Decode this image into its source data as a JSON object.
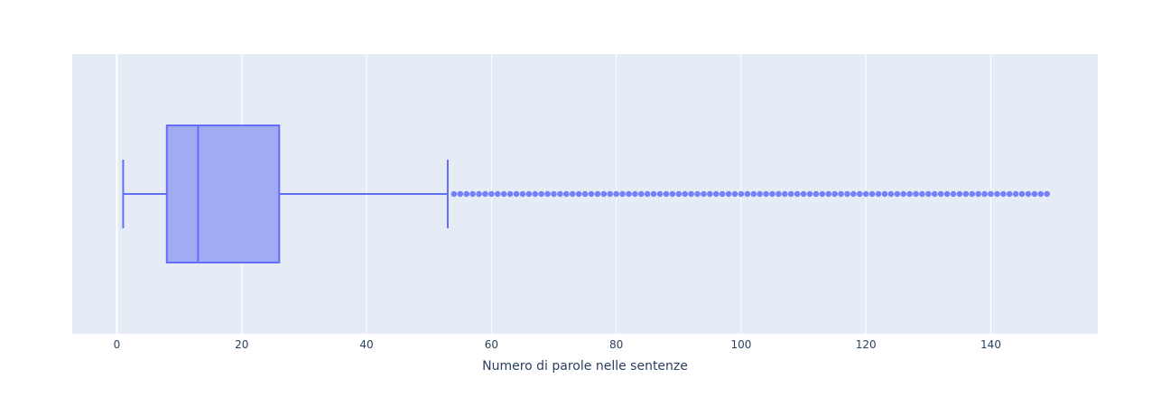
{
  "chart_data": {
    "type": "box",
    "orientation": "horizontal",
    "title": "",
    "xlabel": "Numero di parole nelle sentenze",
    "ylabel": "",
    "xlim": [
      -7,
      157
    ],
    "x_ticks": [
      0,
      20,
      40,
      60,
      80,
      100,
      120,
      140
    ],
    "x_tick_labels": [
      "0",
      "20",
      "40",
      "60",
      "80",
      "100",
      "120",
      "140"
    ],
    "grid": true,
    "legend": "none",
    "series": [
      {
        "lower_fence": 1,
        "q1": 8,
        "median": 13,
        "q3": 26,
        "upper_fence": 53,
        "outliers_range": [
          54,
          149
        ],
        "outliers": [
          54,
          55,
          56,
          57,
          58,
          59,
          60,
          61,
          62,
          63,
          64,
          65,
          66,
          67,
          68,
          69,
          70,
          71,
          72,
          73,
          74,
          75,
          76,
          77,
          78,
          79,
          80,
          81,
          82,
          83,
          84,
          85,
          86,
          87,
          88,
          89,
          90,
          91,
          92,
          93,
          94,
          95,
          96,
          97,
          98,
          99,
          100,
          101,
          102,
          103,
          104,
          105,
          106,
          107,
          108,
          109,
          110,
          111,
          112,
          113,
          114,
          115,
          116,
          117,
          118,
          119,
          120,
          121,
          122,
          123,
          124,
          125,
          126,
          127,
          128,
          129,
          130,
          131,
          132,
          133,
          134,
          135,
          136,
          137,
          138,
          139,
          140,
          141,
          142,
          143,
          144,
          145,
          146,
          147,
          148,
          149
        ]
      }
    ],
    "colors": {
      "box_fill": "#a1abf4",
      "box_line": "#636efa",
      "plot_bg": "#e5ecf6",
      "grid": "#ffffff",
      "text": "#2a3f5f"
    }
  }
}
